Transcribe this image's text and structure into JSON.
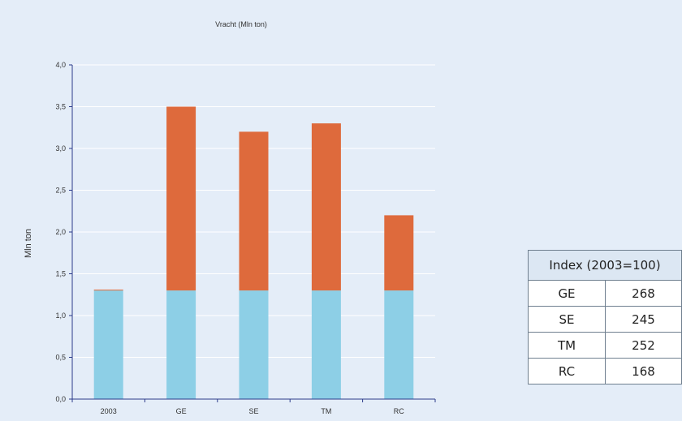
{
  "chart_data": {
    "type": "bar",
    "stacked": true,
    "title": "Vracht (Mln ton)",
    "ylabel": "Mln ton",
    "xlabel": "",
    "categories": [
      "2003",
      "GE",
      "SE",
      "TM",
      "RC"
    ],
    "ylim": [
      0,
      4.0
    ],
    "yticks": [
      "0,0",
      "0,5",
      "1,0",
      "1,5",
      "2,0",
      "2,5",
      "3,0",
      "3,5",
      "4,0"
    ],
    "grid": true,
    "series": [
      {
        "values": [
          1.3,
          1.3,
          1.3,
          1.3,
          1.3
        ],
        "color": "#8dcfe6"
      },
      {
        "values": [
          0.01,
          2.2,
          1.9,
          2.0,
          0.9
        ],
        "color": "#de6a3c"
      }
    ]
  },
  "table": {
    "header": "Index (2003=100)",
    "rows": [
      {
        "label": "GE",
        "value": "268"
      },
      {
        "label": "SE",
        "value": "245"
      },
      {
        "label": "TM",
        "value": "252"
      },
      {
        "label": "RC",
        "value": "168"
      }
    ]
  }
}
